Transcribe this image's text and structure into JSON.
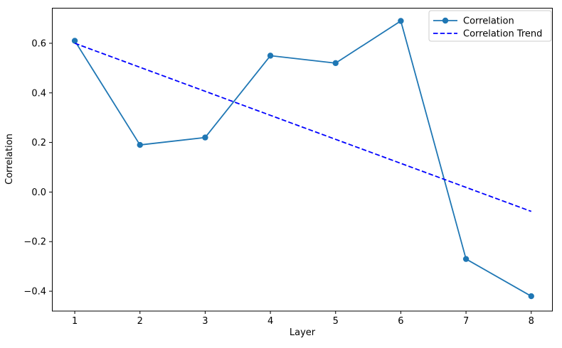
{
  "figure": {
    "background": "#ffffff"
  },
  "chart_data": {
    "type": "line",
    "title": "",
    "xlabel": "Layer",
    "ylabel": "Correlation",
    "x": [
      1,
      2,
      3,
      4,
      5,
      6,
      7,
      8
    ],
    "series": [
      {
        "name": "Correlation",
        "style": "solid-with-circle-markers",
        "color": "#1f77b4",
        "x": [
          1,
          2,
          3,
          4,
          5,
          6,
          7,
          8
        ],
        "values": [
          0.61,
          0.19,
          0.22,
          0.55,
          0.52,
          0.69,
          -0.27,
          -0.42
        ]
      },
      {
        "name": "Correlation Trend",
        "style": "dashed",
        "color": "#0000ff",
        "x": [
          1,
          8
        ],
        "values": [
          0.6,
          -0.078
        ]
      }
    ],
    "xticks": {
      "values": [
        1,
        2,
        3,
        4,
        5,
        6,
        7,
        8
      ],
      "labels": [
        "1",
        "2",
        "3",
        "4",
        "5",
        "6",
        "7",
        "8"
      ]
    },
    "yticks": {
      "values": [
        -0.4,
        -0.2,
        0.0,
        0.2,
        0.4,
        0.6
      ],
      "labels": [
        "−0.4",
        "−0.2",
        "0.0",
        "0.2",
        "0.4",
        "0.6"
      ]
    },
    "xlim": [
      0.65,
      8.33
    ],
    "ylim": [
      -0.48,
      0.743
    ],
    "grid": false,
    "legend": {
      "position": "upper-right",
      "entries": [
        "Correlation",
        "Correlation Trend"
      ]
    },
    "axis_color": "#000000",
    "text_color": "#000000"
  }
}
